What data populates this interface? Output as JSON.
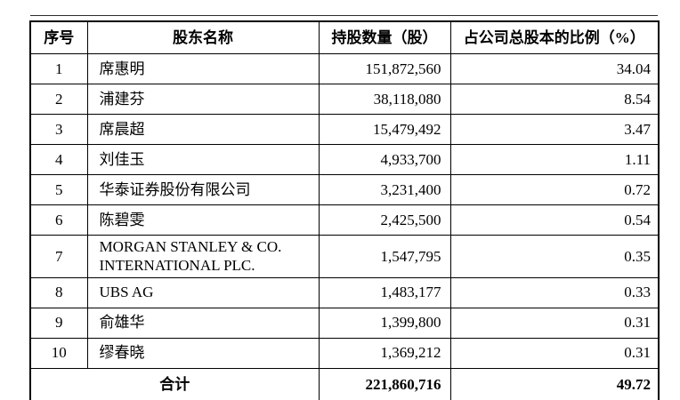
{
  "table": {
    "headers": {
      "index": "序号",
      "name": "股东名称",
      "shares": "持股数量（股）",
      "percent": "占公司总股本的比例（%）"
    },
    "rows": [
      {
        "index": "1",
        "name": "席惠明",
        "shares": "151,872,560",
        "percent": "34.04"
      },
      {
        "index": "2",
        "name": "浦建芬",
        "shares": "38,118,080",
        "percent": "8.54"
      },
      {
        "index": "3",
        "name": "席晨超",
        "shares": "15,479,492",
        "percent": "3.47"
      },
      {
        "index": "4",
        "name": "刘佳玉",
        "shares": "4,933,700",
        "percent": "1.11"
      },
      {
        "index": "5",
        "name": "华泰证券股份有限公司",
        "shares": "3,231,400",
        "percent": "0.72"
      },
      {
        "index": "6",
        "name": "陈碧雯",
        "shares": "2,425,500",
        "percent": "0.54"
      },
      {
        "index": "7",
        "name": "MORGAN STANLEY & CO. INTERNATIONAL PLC.",
        "shares": "1,547,795",
        "percent": "0.35"
      },
      {
        "index": "8",
        "name": "UBS AG",
        "shares": "1,483,177",
        "percent": "0.33"
      },
      {
        "index": "9",
        "name": "俞雄华",
        "shares": "1,399,800",
        "percent": "0.31"
      },
      {
        "index": "10",
        "name": "缪春晓",
        "shares": "1,369,212",
        "percent": "0.31"
      }
    ],
    "total": {
      "label": "合计",
      "shares": "221,860,716",
      "percent": "49.72"
    }
  }
}
